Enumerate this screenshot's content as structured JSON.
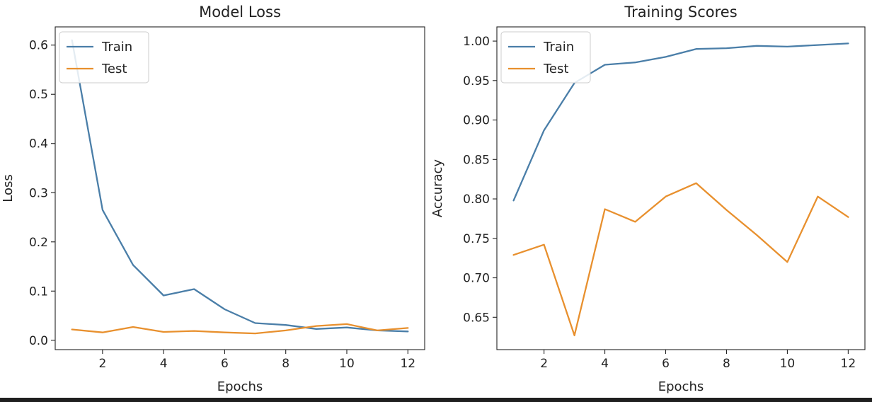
{
  "chart_data": [
    {
      "type": "line",
      "title": "Model Loss",
      "xlabel": "Epochs",
      "ylabel": "Loss",
      "x": [
        1,
        2,
        3,
        4,
        5,
        6,
        7,
        8,
        9,
        10,
        11,
        12
      ],
      "xlim": [
        0.45,
        12.55
      ],
      "ylim": [
        -0.019,
        0.637
      ],
      "xticks": [
        2,
        4,
        6,
        8,
        10,
        12
      ],
      "yticks": [
        0.0,
        0.1,
        0.2,
        0.3,
        0.4,
        0.5,
        0.6
      ],
      "ytick_decimals": 1,
      "legend_location": "upper-left",
      "grid": false,
      "series": [
        {
          "name": "Train",
          "color": "#4a7ea8",
          "values": [
            0.61,
            0.265,
            0.153,
            0.091,
            0.104,
            0.063,
            0.035,
            0.031,
            0.023,
            0.026,
            0.02,
            0.018
          ]
        },
        {
          "name": "Test",
          "color": "#e8902e",
          "values": [
            0.022,
            0.016,
            0.027,
            0.017,
            0.019,
            0.016,
            0.014,
            0.02,
            0.029,
            0.033,
            0.02,
            0.025
          ]
        }
      ]
    },
    {
      "type": "line",
      "title": "Training Scores",
      "xlabel": "Epochs",
      "ylabel": "Accuracy",
      "x": [
        1,
        2,
        3,
        4,
        5,
        6,
        7,
        8,
        9,
        10,
        11,
        12
      ],
      "xlim": [
        0.45,
        12.55
      ],
      "ylim": [
        0.609,
        1.018
      ],
      "xticks": [
        2,
        4,
        6,
        8,
        10,
        12
      ],
      "yticks": [
        0.65,
        0.7,
        0.75,
        0.8,
        0.85,
        0.9,
        0.95,
        1.0
      ],
      "ytick_decimals": 2,
      "legend_location": "upper-left",
      "grid": false,
      "series": [
        {
          "name": "Train",
          "color": "#4a7ea8",
          "values": [
            0.798,
            0.887,
            0.947,
            0.97,
            0.973,
            0.98,
            0.99,
            0.991,
            0.994,
            0.993,
            0.995,
            0.997
          ]
        },
        {
          "name": "Test",
          "color": "#e8902e",
          "values": [
            0.729,
            0.742,
            0.627,
            0.787,
            0.771,
            0.803,
            0.82,
            0.786,
            0.754,
            0.72,
            0.803,
            0.777
          ]
        }
      ]
    }
  ]
}
